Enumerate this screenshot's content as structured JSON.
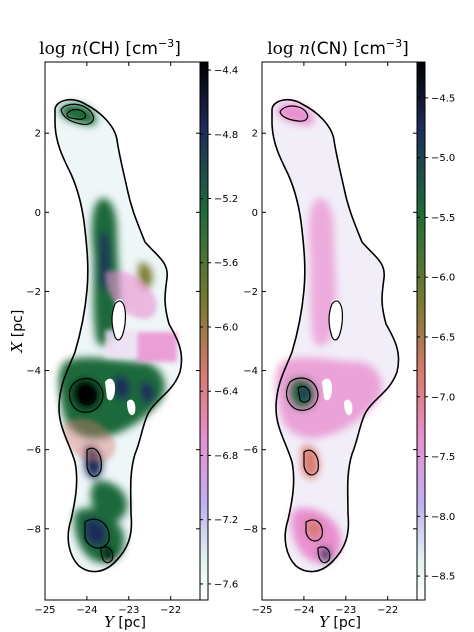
{
  "chart_data": [
    {
      "type": "heatmap",
      "title_math": "log",
      "title_var": "n",
      "title_species": "(CH) [cm",
      "title_exp": "−3",
      "title_close": "]",
      "xlabel_var": "Y",
      "xlabel_unit": "[pc]",
      "ylabel_var": "X",
      "ylabel_unit": "[pc]",
      "xlim": [
        -25,
        -21.3
      ],
      "ylim": [
        -9.8,
        3.8
      ],
      "xticks": [
        "−25",
        "−24",
        "−23",
        "−22"
      ],
      "xtick_values": [
        -25,
        -24,
        -23,
        -22
      ],
      "yticks": [
        "2",
        "0",
        "−2",
        "−4",
        "−6",
        "−8"
      ],
      "ytick_values": [
        2,
        0,
        -2,
        -4,
        -6,
        -8
      ],
      "colorbar_range": [
        -7.7,
        -4.35
      ],
      "colorbar_ticks": [
        "−4.4",
        "−4.8",
        "−5.2",
        "−5.6",
        "−6.0",
        "−6.4",
        "−6.8",
        "−7.2",
        "−7.6"
      ],
      "colorbar_tick_values": [
        -4.4,
        -4.8,
        -5.2,
        -5.6,
        -6.0,
        -6.4,
        -6.8,
        -7.2,
        -7.6
      ]
    },
    {
      "type": "heatmap",
      "title_math": "log",
      "title_var": "n",
      "title_species": "(CN) [cm",
      "title_exp": "−3",
      "title_close": "]",
      "xlabel_var": "Y",
      "xlabel_unit": "[pc]",
      "xlim": [
        -25,
        -21.3
      ],
      "ylim": [
        -9.8,
        3.8
      ],
      "xticks": [
        "−25",
        "−24",
        "−23",
        "−22"
      ],
      "xtick_values": [
        -25,
        -24,
        -23,
        -22
      ],
      "yticks": [
        "2",
        "0",
        "−2",
        "−4",
        "−6",
        "−8"
      ],
      "ytick_values": [
        2,
        0,
        -2,
        -4,
        -6,
        -8
      ],
      "colorbar_range": [
        -8.7,
        -4.2
      ],
      "colorbar_ticks": [
        "−4.5",
        "−5.0",
        "−5.5",
        "−6.0",
        "−6.5",
        "−7.0",
        "−7.5",
        "−8.0",
        "−8.5"
      ],
      "colorbar_tick_values": [
        -4.5,
        -5.0,
        -5.5,
        -6.0,
        -6.5,
        -7.0,
        -7.5,
        -8.0,
        -8.5
      ]
    }
  ],
  "colormap": [
    "#000000",
    "#1e2a5a",
    "#1f6b3a",
    "#7a7a30",
    "#d97a70",
    "#e98fd0",
    "#c0b0f0",
    "#e0f0f0",
    "#ffffff"
  ]
}
